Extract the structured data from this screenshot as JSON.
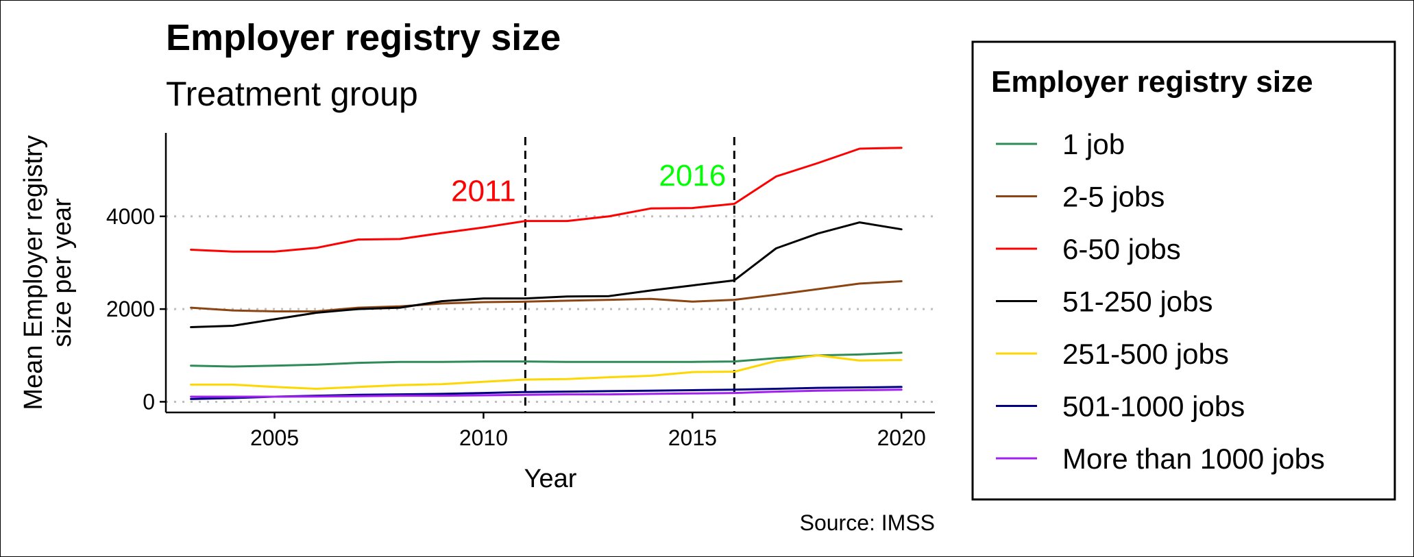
{
  "chart_data": {
    "type": "line",
    "title": "Employer registry size",
    "subtitle": "Treatment group",
    "xlabel": "Year",
    "ylabel": "Mean Employer registry size per year",
    "ylabel_lines": [
      "Mean Employer registry",
      "size per year"
    ],
    "caption": "Source: IMSS",
    "xlim": [
      2002.4,
      2020.8
    ],
    "ylim": [
      -230,
      5800
    ],
    "x_ticks": [
      2005,
      2010,
      2015,
      2020
    ],
    "x_tick_labels": [
      "2005",
      "2010",
      "2015",
      "2020"
    ],
    "y_ticks": [
      0,
      2000,
      4000
    ],
    "y_tick_labels": [
      "0",
      "2000",
      "4000"
    ],
    "grid": {
      "major_y": true,
      "style": "dotted",
      "color": "#bebebe"
    },
    "legend": {
      "title": "Employer registry size",
      "position": "right"
    },
    "x": [
      2003,
      2004,
      2005,
      2006,
      2007,
      2008,
      2009,
      2010,
      2011,
      2012,
      2013,
      2014,
      2015,
      2016,
      2017,
      2018,
      2019,
      2020
    ],
    "series": [
      {
        "name": "1 job",
        "color": "#2e8b57",
        "values": [
          780,
          760,
          780,
          800,
          840,
          860,
          860,
          870,
          870,
          860,
          860,
          860,
          860,
          870,
          940,
          1000,
          1020,
          1060
        ]
      },
      {
        "name": "2-5 jobs",
        "color": "#8b4513",
        "values": [
          2030,
          1970,
          1950,
          1950,
          2030,
          2060,
          2120,
          2150,
          2160,
          2180,
          2200,
          2220,
          2160,
          2200,
          2310,
          2430,
          2550,
          2600
        ]
      },
      {
        "name": "6-50 jobs",
        "color": "#ff0000",
        "values": [
          3280,
          3240,
          3240,
          3320,
          3500,
          3510,
          3640,
          3760,
          3900,
          3900,
          4000,
          4170,
          4180,
          4270,
          4860,
          5150,
          5460,
          5480
        ]
      },
      {
        "name": "51-250 jobs",
        "color": "#000000",
        "values": [
          1610,
          1640,
          1780,
          1920,
          2000,
          2030,
          2170,
          2230,
          2230,
          2270,
          2280,
          2400,
          2510,
          2620,
          3310,
          3630,
          3870,
          3720
        ]
      },
      {
        "name": "251-500 jobs",
        "color": "#ffd700",
        "values": [
          370,
          370,
          320,
          280,
          320,
          360,
          380,
          430,
          480,
          490,
          530,
          560,
          640,
          650,
          880,
          1000,
          890,
          900
        ]
      },
      {
        "name": "501-1000 jobs",
        "color": "#000080",
        "values": [
          60,
          80,
          110,
          130,
          150,
          160,
          170,
          190,
          210,
          220,
          230,
          240,
          250,
          260,
          280,
          300,
          310,
          320
        ]
      },
      {
        "name": "More than 1000 jobs",
        "color": "#a020f0",
        "values": [
          110,
          110,
          110,
          115,
          120,
          130,
          130,
          140,
          150,
          160,
          160,
          170,
          180,
          190,
          220,
          240,
          250,
          260
        ]
      }
    ],
    "vlines": [
      {
        "x": 2011,
        "style": "dashed",
        "color": "#000000"
      },
      {
        "x": 2016,
        "style": "dashed",
        "color": "#000000"
      }
    ],
    "annotations": [
      {
        "text": "2011",
        "x": 2010.0,
        "y": 4330,
        "color": "#ff0000"
      },
      {
        "text": "2016",
        "x": 2015.0,
        "y": 4660,
        "color": "#00ff00"
      }
    ]
  }
}
